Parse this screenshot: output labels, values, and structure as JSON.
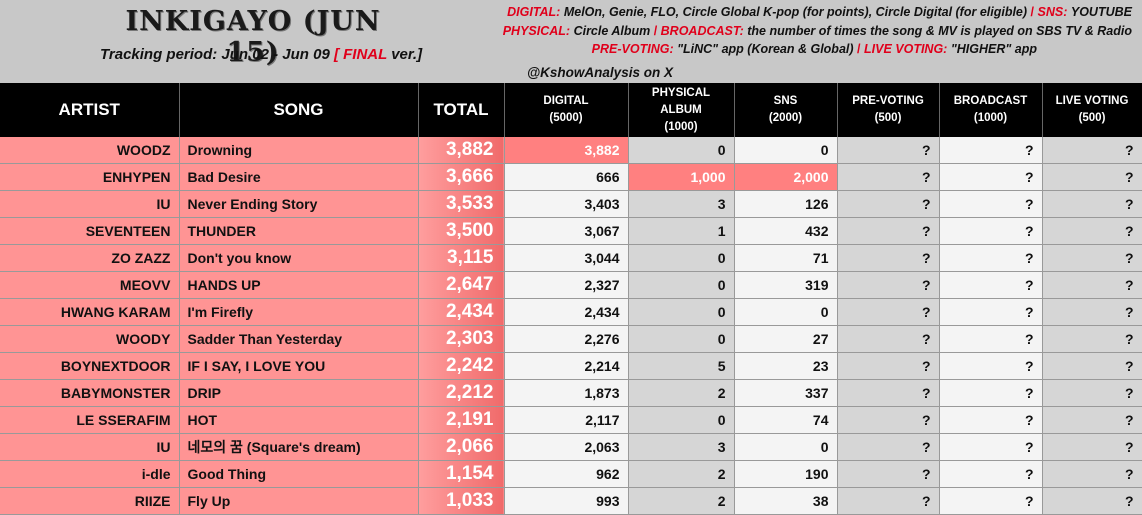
{
  "header": {
    "title": "INKIGAYO (JUN 15)",
    "period_prefix": "Tracking period: Jun 02 - Jun 09",
    "bracket_open": "[",
    "final_word": "FINAL",
    "ver_suffix": "ver.]",
    "credit": "@KshowAnalysis on X"
  },
  "legend": {
    "digital_label": "DIGITAL:",
    "digital_text": "MelOn, Genie, FLO, Circle Global K-pop (for points), Circle Digital (for eligible)",
    "sns_label": "SNS:",
    "sns_text": "YOUTUBE",
    "physical_label": "PHYSICAL:",
    "physical_text": "Circle Album",
    "broadcast_label": "BROADCAST:",
    "broadcast_text": "the number of times the song & MV is played on SBS TV & Radio",
    "prevoting_label": "PRE-VOTING:",
    "prevoting_text": "\"LiNC\" app (Korean & Global)",
    "livevoting_label": "LIVE VOTING:",
    "livevoting_text": "\"HIGHER\" app",
    "separator": "/"
  },
  "columns": {
    "artist": "ARTIST",
    "song": "SONG",
    "total": "TOTAL",
    "digital_1": "DIGITAL",
    "digital_2": "(5000)",
    "physical_1": "PHYSICAL",
    "physical_2": "ALBUM",
    "physical_3": "(1000)",
    "sns_1": "SNS",
    "sns_2": "(2000)",
    "prevoting_1": "PRE-VOTING",
    "prevoting_2": "(500)",
    "broadcast_1": "BROADCAST",
    "broadcast_2": "(1000)",
    "livevoting_1": "LIVE VOTING",
    "livevoting_2": "(500)"
  },
  "rows": [
    {
      "artist": "WOODZ",
      "song": "Drowning",
      "total": "3,882",
      "digital": "3,882",
      "physical": "0",
      "sns": "0",
      "prevoting": "?",
      "broadcast": "?",
      "livevoting": "?"
    },
    {
      "artist": "ENHYPEN",
      "song": "Bad Desire",
      "total": "3,666",
      "digital": "666",
      "physical": "1,000",
      "sns": "2,000",
      "prevoting": "?",
      "broadcast": "?",
      "livevoting": "?"
    },
    {
      "artist": "IU",
      "song": "Never Ending Story",
      "total": "3,533",
      "digital": "3,403",
      "physical": "3",
      "sns": "126",
      "prevoting": "?",
      "broadcast": "?",
      "livevoting": "?"
    },
    {
      "artist": "SEVENTEEN",
      "song": "THUNDER",
      "total": "3,500",
      "digital": "3,067",
      "physical": "1",
      "sns": "432",
      "prevoting": "?",
      "broadcast": "?",
      "livevoting": "?"
    },
    {
      "artist": "ZO ZAZZ",
      "song": "Don't you know",
      "total": "3,115",
      "digital": "3,044",
      "physical": "0",
      "sns": "71",
      "prevoting": "?",
      "broadcast": "?",
      "livevoting": "?"
    },
    {
      "artist": "MEOVV",
      "song": "HANDS UP",
      "total": "2,647",
      "digital": "2,327",
      "physical": "0",
      "sns": "319",
      "prevoting": "?",
      "broadcast": "?",
      "livevoting": "?"
    },
    {
      "artist": "HWANG KARAM",
      "song": "I'm Firefly",
      "total": "2,434",
      "digital": "2,434",
      "physical": "0",
      "sns": "0",
      "prevoting": "?",
      "broadcast": "?",
      "livevoting": "?"
    },
    {
      "artist": "WOODY",
      "song": "Sadder Than Yesterday",
      "total": "2,303",
      "digital": "2,276",
      "physical": "0",
      "sns": "27",
      "prevoting": "?",
      "broadcast": "?",
      "livevoting": "?"
    },
    {
      "artist": "BOYNEXTDOOR",
      "song": "IF I SAY, I LOVE YOU",
      "total": "2,242",
      "digital": "2,214",
      "physical": "5",
      "sns": "23",
      "prevoting": "?",
      "broadcast": "?",
      "livevoting": "?"
    },
    {
      "artist": "BABYMONSTER",
      "song": "DRIP",
      "total": "2,212",
      "digital": "1,873",
      "physical": "2",
      "sns": "337",
      "prevoting": "?",
      "broadcast": "?",
      "livevoting": "?"
    },
    {
      "artist": "LE SSERAFIM",
      "song": "HOT",
      "total": "2,191",
      "digital": "2,117",
      "physical": "0",
      "sns": "74",
      "prevoting": "?",
      "broadcast": "?",
      "livevoting": "?"
    },
    {
      "artist": "IU",
      "song": "네모의 꿈 (Square's dream)",
      "total": "2,066",
      "digital": "2,063",
      "physical": "3",
      "sns": "0",
      "prevoting": "?",
      "broadcast": "?",
      "livevoting": "?"
    },
    {
      "artist": "i-dle",
      "song": "Good Thing",
      "total": "1,154",
      "digital": "962",
      "physical": "2",
      "sns": "190",
      "prevoting": "?",
      "broadcast": "?",
      "livevoting": "?"
    },
    {
      "artist": "RIIZE",
      "song": "Fly Up",
      "total": "1,033",
      "digital": "993",
      "physical": "2",
      "sns": "38",
      "prevoting": "?",
      "broadcast": "?",
      "livevoting": "?"
    }
  ],
  "highlights": {
    "0": [
      "digital"
    ],
    "1": [
      "physical",
      "sns"
    ]
  }
}
